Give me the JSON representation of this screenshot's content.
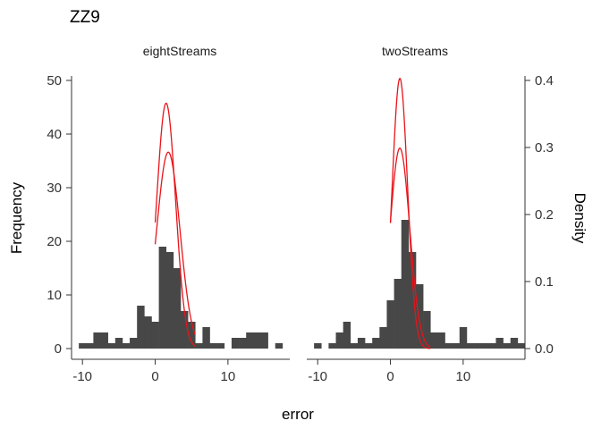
{
  "chart_data": {
    "type": "bar",
    "title": "ZZ9",
    "xlabel": "error",
    "ylabel": "Frequency",
    "ylabel_right": "Density",
    "xlim": [
      -11.5,
      18.5
    ],
    "ylim": [
      0,
      50
    ],
    "ylim_right": [
      0,
      0.4
    ],
    "x_ticks": [
      -10,
      0,
      10
    ],
    "x_tick_labels": [
      "-10",
      "0",
      "10"
    ],
    "y_ticks": [
      0,
      10,
      20,
      30,
      40,
      50
    ],
    "y_tick_labels": [
      "0",
      "10",
      "20",
      "30",
      "40",
      "50"
    ],
    "y_ticks_right": [
      0,
      0.1,
      0.2,
      0.3,
      0.4
    ],
    "y_tick_labels_right": [
      "0.0",
      "0.1",
      "0.2",
      "0.3",
      "0.4"
    ],
    "grid": false,
    "bin_width": 1,
    "bin_start": -10.5,
    "panels": [
      {
        "strip": "eightStreams",
        "counts": [
          1,
          1,
          3,
          3,
          1,
          2,
          1,
          2,
          8,
          6,
          5,
          19,
          18,
          15,
          7,
          5,
          1,
          4,
          1,
          1,
          0,
          2,
          2,
          3,
          3,
          3,
          0,
          1
        ],
        "curves": [
          {
            "mean": 1.5,
            "sd": 1.3,
            "peak": 0.366
          },
          {
            "mean": 1.8,
            "sd": 1.6,
            "peak": 0.293
          }
        ]
      },
      {
        "strip": "twoStreams",
        "counts": [
          1,
          0,
          1,
          3,
          5,
          1,
          2,
          1,
          2,
          4,
          9,
          13,
          24,
          18,
          12,
          7,
          3,
          3,
          1,
          1,
          4,
          1,
          1,
          1,
          1,
          2,
          1,
          2,
          1
        ],
        "curves": [
          {
            "mean": 1.3,
            "sd": 1.05,
            "peak": 0.403
          },
          {
            "mean": 1.3,
            "sd": 1.35,
            "peak": 0.299
          }
        ]
      }
    ]
  }
}
